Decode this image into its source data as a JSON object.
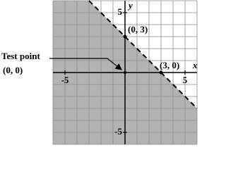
{
  "chart_data": {
    "type": "line",
    "x": [
      -3,
      6
    ],
    "series": [
      {
        "color": "#000000",
        "values": [
          6,
          -3
        ]
      }
    ],
    "xlim": [
      -6,
      6
    ],
    "ylim": [
      -6,
      6
    ],
    "xticks": [
      -5,
      5
    ],
    "yticks": [
      -5,
      5
    ],
    "grid": true,
    "grid_spacing": 1,
    "shade": "below",
    "shade_color": "#b3b3b3",
    "x_label": "x",
    "y_label": "y",
    "points": [
      {
        "x": 0,
        "y": 3,
        "label": "(0, 3)"
      },
      {
        "x": 3,
        "y": 0,
        "label": "(3, 0)"
      }
    ],
    "test_point": {
      "x": 0,
      "y": 0,
      "label": "Test point",
      "coords": "(0, 0)"
    }
  }
}
